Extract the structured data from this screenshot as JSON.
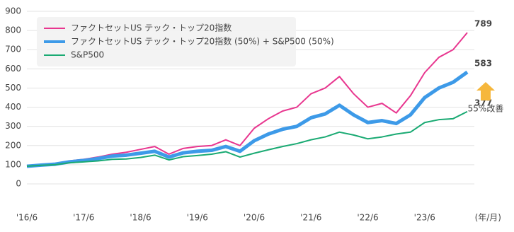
{
  "chart_data": {
    "type": "line",
    "categories": [
      "'16/6",
      null,
      null,
      null,
      "'17/6",
      null,
      null,
      null,
      "'18/6",
      null,
      null,
      null,
      "'19/6",
      null,
      null,
      null,
      "'20/6",
      null,
      null,
      null,
      "'21/6",
      null,
      null,
      null,
      "'22/6",
      null,
      null,
      null,
      "'23/6",
      null,
      null,
      null
    ],
    "x_label": "(年/月)",
    "series": [
      {
        "name": "ファクトセットUS テック・トップ20指数",
        "color": "#e8368f",
        "width": 2,
        "values": [
          93,
          100,
          105,
          120,
          128,
          140,
          155,
          165,
          180,
          195,
          155,
          185,
          195,
          200,
          230,
          200,
          290,
          340,
          380,
          400,
          470,
          500,
          560,
          470,
          400,
          420,
          370,
          460,
          580,
          660,
          700,
          789
        ]
      },
      {
        "name": "ファクトセットUS テック・トップ20指数 (50%) + S&P500 (50%)",
        "color": "#3d9ae8",
        "width": 5,
        "values": [
          92,
          98,
          103,
          115,
          122,
          132,
          145,
          150,
          160,
          170,
          140,
          162,
          170,
          175,
          195,
          170,
          225,
          260,
          285,
          300,
          345,
          365,
          410,
          360,
          320,
          330,
          315,
          360,
          450,
          500,
          530,
          583
        ]
      },
      {
        "name": "S&P500",
        "color": "#1aaa73",
        "width": 2,
        "values": [
          92,
          97,
          100,
          110,
          115,
          120,
          128,
          130,
          138,
          150,
          125,
          142,
          148,
          155,
          168,
          140,
          160,
          178,
          195,
          210,
          230,
          245,
          270,
          255,
          235,
          245,
          260,
          270,
          320,
          335,
          340,
          377
        ]
      }
    ],
    "annotation": "55%改善",
    "ylim": [
      0,
      900
    ],
    "yticks": [
      0,
      100,
      200,
      300,
      400,
      500,
      600,
      700,
      800,
      900
    ],
    "grid": true,
    "legend": "upper left"
  }
}
